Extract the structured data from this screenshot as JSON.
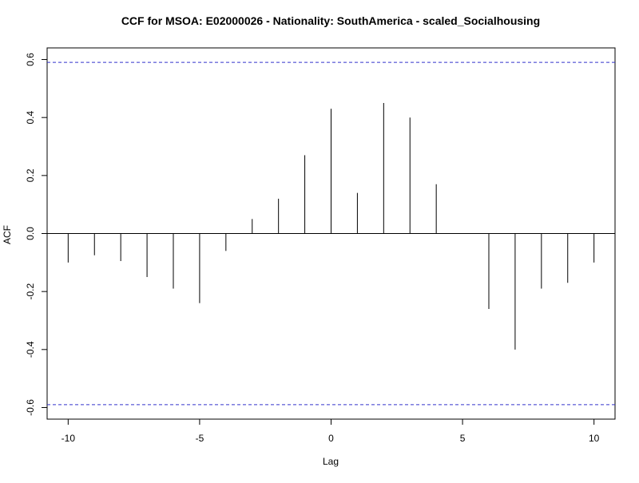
{
  "chart_data": {
    "type": "bar",
    "title": "CCF for MSOA: E02000026 - Nationality: SouthAmerica - scaled_Socialhousing",
    "xlabel": "Lag",
    "ylabel": "ACF",
    "x": [
      -10,
      -9,
      -8,
      -7,
      -6,
      -5,
      -4,
      -3,
      -2,
      -1,
      0,
      1,
      2,
      3,
      4,
      5,
      6,
      7,
      8,
      9,
      10
    ],
    "values": [
      -0.1,
      -0.075,
      -0.095,
      -0.15,
      -0.19,
      -0.24,
      -0.06,
      0.05,
      0.12,
      0.27,
      0.43,
      0.14,
      0.45,
      0.4,
      0.17,
      0.0,
      -0.26,
      -0.4,
      -0.19,
      -0.17,
      -0.1
    ],
    "xlim": [
      -10.8,
      10.8
    ],
    "ylim": [
      -0.64,
      0.64
    ],
    "x_ticks": [
      -10,
      -5,
      0,
      5,
      10
    ],
    "x_tick_labels": [
      "-10",
      "-5",
      "0",
      "5",
      "10"
    ],
    "y_ticks": [
      -0.6,
      -0.4,
      -0.2,
      0.0,
      0.2,
      0.4,
      0.6
    ],
    "y_tick_labels": [
      "-0.6",
      "-0.4",
      "-0.2",
      "0.0",
      "0.2",
      "0.4",
      "0.6"
    ],
    "confidence_bound": 0.59,
    "colors": {
      "bars": "#000000",
      "confidence": "#3333cc",
      "frame": "#000000"
    },
    "grid": false
  }
}
